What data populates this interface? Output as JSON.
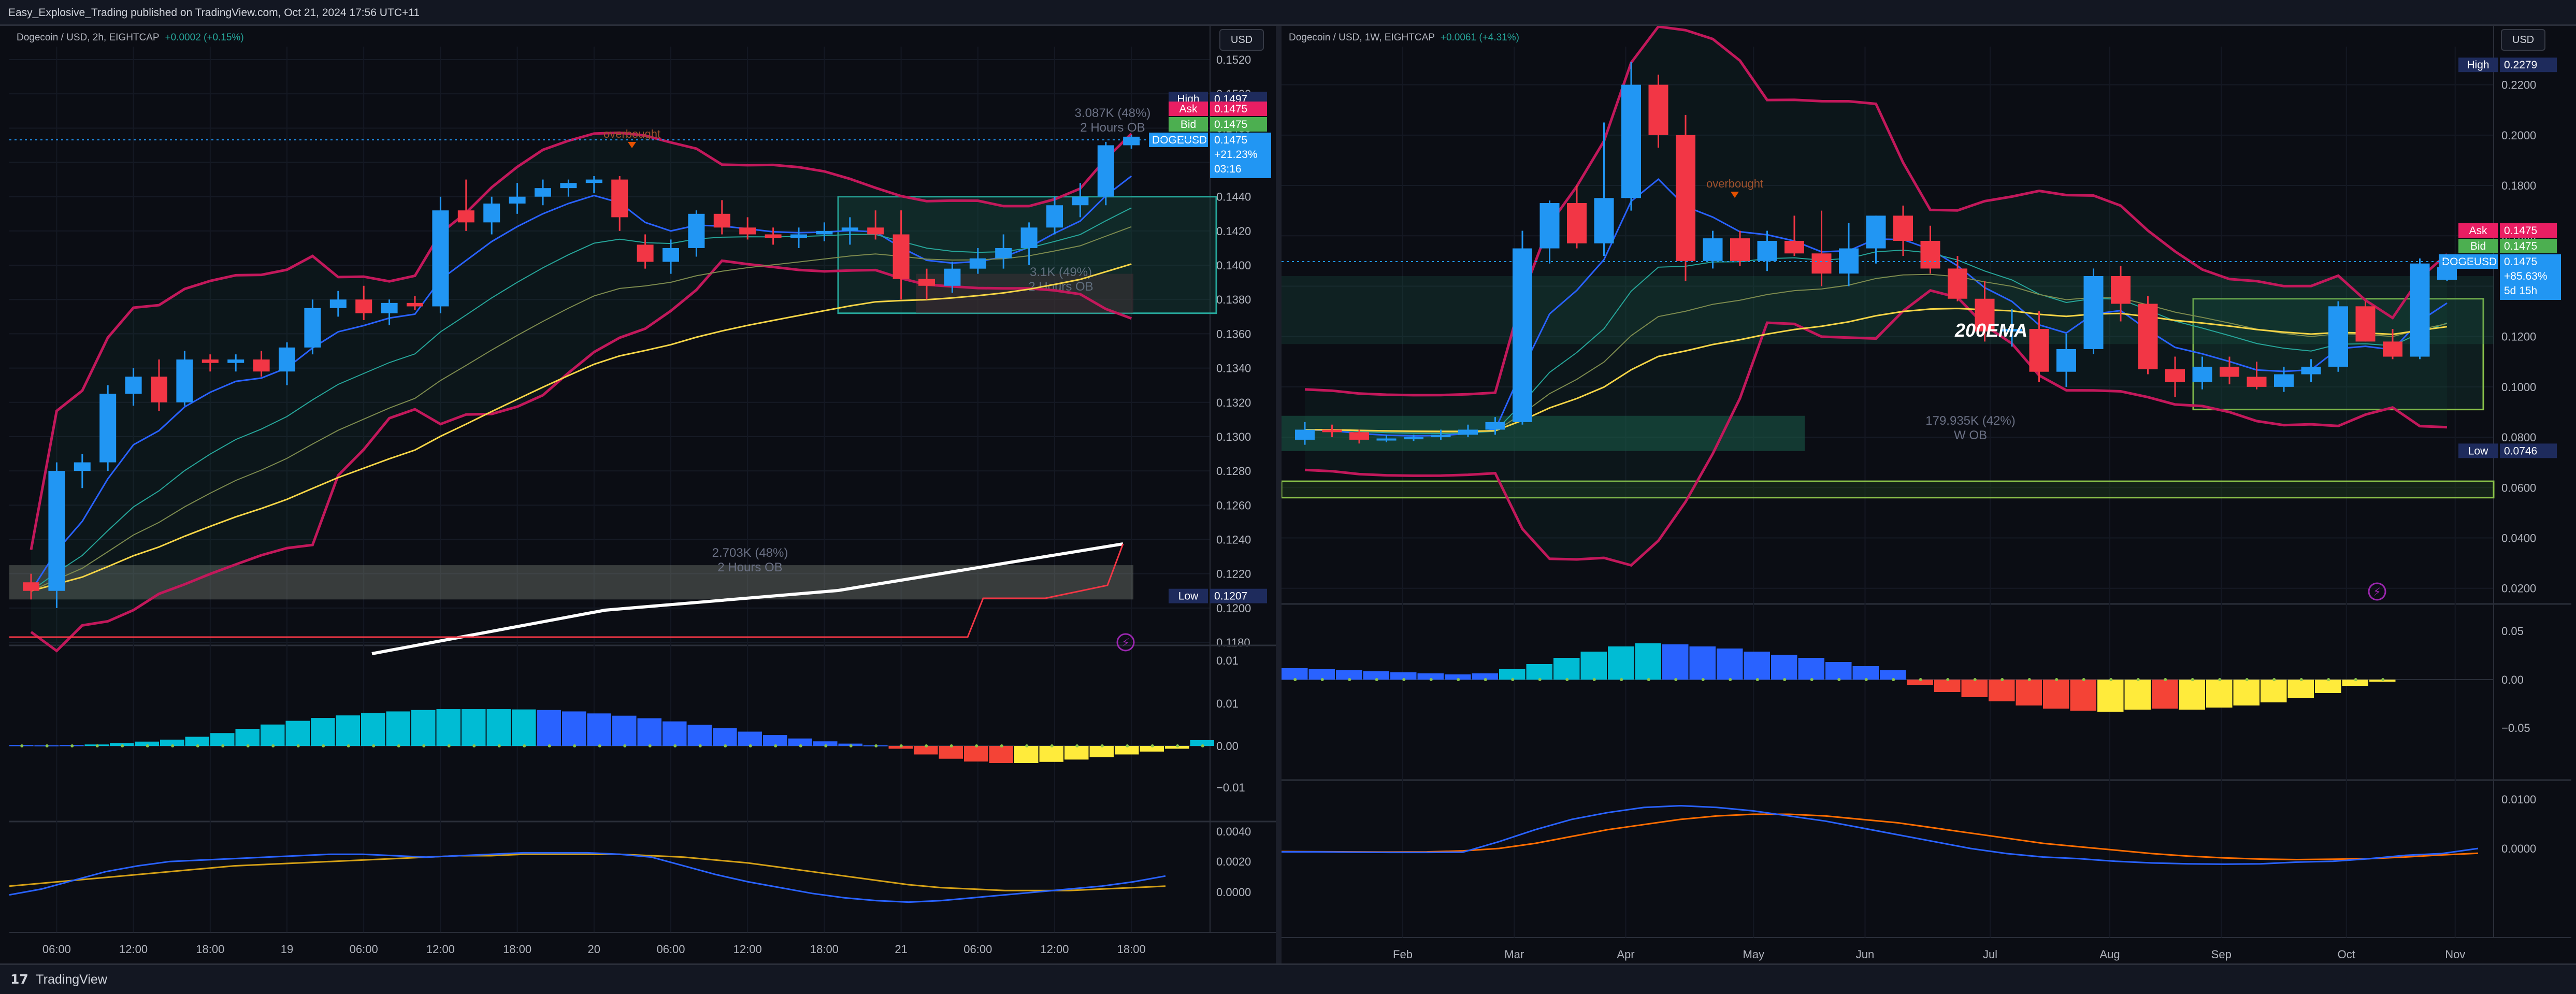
{
  "header": {
    "text": "Easy_Explosive_Trading published on TradingView.com, Oct 21, 2024 17:56 UTC+11"
  },
  "footer": {
    "logo": "17",
    "brand": "TradingView"
  },
  "colors": {
    "bull": "#2196f3",
    "bear": "#f23645",
    "bb": "#c2185b",
    "ema_fast": "#2962ff",
    "ema_slow": "#f5d547",
    "tag_high": "#1e2b5c",
    "tag_ask": "#e91e63",
    "tag_bid": "#4caf50",
    "tag_last": "#2196f3",
    "hist_cyan": "#00bcd4",
    "hist_blue": "#2962ff",
    "hist_red": "#f44336",
    "hist_yellow": "#ffeb3b",
    "macd": "#2962ff",
    "signal_l": "#d4a017",
    "signal_r": "#ff6d00"
  },
  "chart_data": [
    {
      "type": "candlestick",
      "title": "Dogecoin / USD, 2h, EIGHTCAP",
      "change": "+0.0002 (+0.15%)",
      "currency_button": "USD",
      "ylim": [
        0.118,
        0.152
      ],
      "y_ticks": [
        "0.1520",
        "0.1500",
        "0.1480",
        "0.1460",
        "0.1440",
        "0.1420",
        "0.1400",
        "0.1380",
        "0.1360",
        "0.1340",
        "0.1320",
        "0.1300",
        "0.1280",
        "0.1260",
        "0.1240",
        "0.1220",
        "0.1200",
        "0.1180"
      ],
      "x_labels": [
        "06:00",
        "12:00",
        "18:00",
        "19",
        "06:00",
        "12:00",
        "18:00",
        "20",
        "06:00",
        "12:00",
        "18:00",
        "21",
        "06:00",
        "12:00",
        "18:00"
      ],
      "x_label_pos": [
        1,
        4,
        7,
        10,
        13,
        16,
        19,
        22,
        25,
        28,
        31,
        34,
        37,
        40,
        43
      ],
      "candles": [
        [
          0.1215,
          0.122,
          0.1205,
          0.121
        ],
        [
          0.121,
          0.1285,
          0.12,
          0.128
        ],
        [
          0.128,
          0.129,
          0.127,
          0.1285
        ],
        [
          0.1285,
          0.133,
          0.128,
          0.1325
        ],
        [
          0.1325,
          0.134,
          0.1318,
          0.1335
        ],
        [
          0.1335,
          0.1345,
          0.1315,
          0.132
        ],
        [
          0.132,
          0.135,
          0.1318,
          0.1345
        ],
        [
          0.1345,
          0.1348,
          0.1338,
          0.1343
        ],
        [
          0.1343,
          0.1348,
          0.1338,
          0.1345
        ],
        [
          0.1345,
          0.135,
          0.1335,
          0.1338
        ],
        [
          0.1338,
          0.1355,
          0.133,
          0.1352
        ],
        [
          0.1352,
          0.138,
          0.1348,
          0.1375
        ],
        [
          0.1375,
          0.1385,
          0.137,
          0.138
        ],
        [
          0.138,
          0.1388,
          0.1368,
          0.1372
        ],
        [
          0.1372,
          0.138,
          0.1365,
          0.1378
        ],
        [
          0.1378,
          0.1382,
          0.1374,
          0.1376
        ],
        [
          0.1376,
          0.144,
          0.1372,
          0.1432
        ],
        [
          0.1432,
          0.145,
          0.142,
          0.1425
        ],
        [
          0.1425,
          0.144,
          0.1418,
          0.1436
        ],
        [
          0.1436,
          0.1448,
          0.143,
          0.144
        ],
        [
          0.144,
          0.145,
          0.1435,
          0.1445
        ],
        [
          0.1445,
          0.145,
          0.144,
          0.1448
        ],
        [
          0.1448,
          0.1452,
          0.1442,
          0.145
        ],
        [
          0.145,
          0.1452,
          0.142,
          0.1428
        ],
        [
          0.1412,
          0.1418,
          0.1398,
          0.1402
        ],
        [
          0.1402,
          0.1415,
          0.1395,
          0.141
        ],
        [
          0.141,
          0.1432,
          0.1405,
          0.143
        ],
        [
          0.143,
          0.1438,
          0.1418,
          0.1422
        ],
        [
          0.1422,
          0.1428,
          0.1415,
          0.1418
        ],
        [
          0.1418,
          0.1422,
          0.1412,
          0.1416
        ],
        [
          0.1416,
          0.1422,
          0.141,
          0.1418
        ],
        [
          0.1418,
          0.1425,
          0.1414,
          0.142
        ],
        [
          0.142,
          0.1428,
          0.1412,
          0.1422
        ],
        [
          0.1422,
          0.1432,
          0.1415,
          0.1418
        ],
        [
          0.1418,
          0.1432,
          0.138,
          0.1392
        ],
        [
          0.1392,
          0.1398,
          0.138,
          0.1388
        ],
        [
          0.1388,
          0.1402,
          0.1384,
          0.1398
        ],
        [
          0.1398,
          0.141,
          0.1395,
          0.1404
        ],
        [
          0.1404,
          0.1418,
          0.1398,
          0.141
        ],
        [
          0.141,
          0.1425,
          0.14,
          0.1422
        ],
        [
          0.1422,
          0.144,
          0.1418,
          0.1435
        ],
        [
          0.1435,
          0.1448,
          0.1428,
          0.144
        ],
        [
          0.144,
          0.1472,
          0.1435,
          0.147
        ],
        [
          0.147,
          0.1476,
          0.1468,
          0.1475
        ]
      ],
      "zones": [
        {
          "label": "3.087K (48%)",
          "sublabel": "2 Hours OB"
        },
        {
          "label": "3.1K (49%)",
          "sublabel": "2 Hours OB"
        },
        {
          "label": "2.703K (48%)",
          "sublabel": "2 Hours OB"
        }
      ],
      "annotation": "overbought",
      "tags": {
        "high": {
          "label": "High",
          "value": "0.1497"
        },
        "ask": {
          "label": "Ask",
          "value": "0.1475"
        },
        "bid": {
          "label": "Bid",
          "value": "0.1475"
        },
        "last": {
          "symbol": "DOGEUSD",
          "value": "0.1475",
          "change": "+21.23%",
          "countdown": "03:16"
        },
        "low": {
          "label": "Low",
          "value": "0.1207"
        }
      },
      "histogram": {
        "y_ticks": [
          "0.01",
          "0.01",
          "0.00",
          "−0.01"
        ],
        "values": [
          0.0003,
          0.0002,
          0.0003,
          0.0005,
          0.001,
          0.0015,
          0.0022,
          0.0032,
          0.0045,
          0.006,
          0.0075,
          0.0088,
          0.0098,
          0.0107,
          0.0115,
          0.0121,
          0.0126,
          0.0129,
          0.0129,
          0.0129,
          0.0128,
          0.0126,
          0.0121,
          0.0114,
          0.0106,
          0.0097,
          0.0086,
          0.0074,
          0.0062,
          0.005,
          0.0038,
          0.0026,
          0.0016,
          0.0008,
          0.0002,
          -0.001,
          -0.003,
          -0.0045,
          -0.0055,
          -0.006,
          -0.006,
          -0.0056,
          -0.0048,
          -0.004,
          -0.003,
          -0.002,
          -0.001,
          0.002
        ],
        "colors": [
          "b",
          "b",
          "b",
          "c",
          "c",
          "c",
          "c",
          "c",
          "c",
          "c",
          "c",
          "c",
          "c",
          "c",
          "c",
          "c",
          "c",
          "c",
          "c",
          "c",
          "c",
          "b",
          "b",
          "b",
          "b",
          "b",
          "b",
          "b",
          "b",
          "b",
          "b",
          "b",
          "b",
          "b",
          "b",
          "r",
          "r",
          "r",
          "r",
          "r",
          "y",
          "y",
          "y",
          "y",
          "y",
          "y",
          "y",
          "c"
        ]
      },
      "oscillator": {
        "y_ticks": [
          "0.0040",
          "0.0020",
          "0.0000"
        ],
        "macd": [
          -0.0002,
          0.0002,
          0.0008,
          0.0014,
          0.0018,
          0.0021,
          0.0022,
          0.0023,
          0.0024,
          0.0025,
          0.0026,
          0.0026,
          0.0025,
          0.0024,
          0.0025,
          0.0026,
          0.0027,
          0.0027,
          0.0027,
          0.0026,
          0.0024,
          0.0018,
          0.0012,
          0.0007,
          0.0003,
          -0.0001,
          -0.0004,
          -0.0006,
          -0.0007,
          -0.0006,
          -0.0004,
          -0.0002,
          0.0,
          0.0002,
          0.0004,
          0.0007,
          0.0011
        ],
        "signal": [
          0.0004,
          0.0006,
          0.0008,
          0.001,
          0.0012,
          0.0014,
          0.0016,
          0.0018,
          0.0019,
          0.002,
          0.0021,
          0.0022,
          0.0023,
          0.0024,
          0.0025,
          0.0025,
          0.0026,
          0.0026,
          0.0026,
          0.0026,
          0.0025,
          0.0024,
          0.0022,
          0.002,
          0.0017,
          0.0014,
          0.0011,
          0.0008,
          0.0005,
          0.0003,
          0.0002,
          0.0001,
          0.0001,
          0.0001,
          0.0002,
          0.0003,
          0.0004
        ]
      }
    },
    {
      "type": "candlestick",
      "title": "Dogecoin / USD, 1W, EIGHTCAP",
      "change": "+0.0061 (+4.31%)",
      "currency_button": "USD",
      "ylim": [
        0.015,
        0.23
      ],
      "y_ticks": [
        "0.2200",
        "0.2000",
        "0.1800",
        "0.1600",
        "0.1400",
        "0.1200",
        "0.1000",
        "0.0800",
        "0.0600",
        "0.0400",
        "0.0200"
      ],
      "x_labels": [
        "Feb",
        "Mar",
        "Apr",
        "May",
        "Jun",
        "Jul",
        "Aug",
        "Sep",
        "Oct",
        "Nov"
      ],
      "x_label_pos": [
        3.6,
        7.7,
        11.8,
        16.5,
        20.6,
        25.2,
        29.6,
        33.7,
        38.3,
        42.3
      ],
      "candles": [
        [
          0.079,
          0.086,
          0.077,
          0.083
        ],
        [
          0.083,
          0.085,
          0.08,
          0.082
        ],
        [
          0.082,
          0.083,
          0.0775,
          0.079
        ],
        [
          0.079,
          0.081,
          0.078,
          0.0795
        ],
        [
          0.0795,
          0.081,
          0.0785,
          0.08
        ],
        [
          0.08,
          0.083,
          0.079,
          0.081
        ],
        [
          0.081,
          0.085,
          0.08,
          0.083
        ],
        [
          0.083,
          0.088,
          0.081,
          0.086
        ],
        [
          0.086,
          0.162,
          0.085,
          0.155
        ],
        [
          0.155,
          0.174,
          0.149,
          0.173
        ],
        [
          0.173,
          0.18,
          0.155,
          0.157
        ],
        [
          0.157,
          0.205,
          0.152,
          0.175
        ],
        [
          0.175,
          0.229,
          0.17,
          0.22
        ],
        [
          0.22,
          0.224,
          0.195,
          0.2
        ],
        [
          0.2,
          0.208,
          0.142,
          0.15
        ],
        [
          0.15,
          0.162,
          0.147,
          0.159
        ],
        [
          0.159,
          0.162,
          0.148,
          0.15
        ],
        [
          0.15,
          0.162,
          0.146,
          0.158
        ],
        [
          0.158,
          0.168,
          0.152,
          0.153
        ],
        [
          0.153,
          0.17,
          0.14,
          0.145
        ],
        [
          0.145,
          0.165,
          0.14,
          0.155
        ],
        [
          0.155,
          0.168,
          0.149,
          0.168
        ],
        [
          0.168,
          0.172,
          0.152,
          0.158
        ],
        [
          0.158,
          0.164,
          0.145,
          0.147
        ],
        [
          0.147,
          0.152,
          0.134,
          0.135
        ],
        [
          0.135,
          0.142,
          0.118,
          0.122
        ],
        [
          0.122,
          0.131,
          0.116,
          0.123
        ],
        [
          0.123,
          0.13,
          0.102,
          0.106
        ],
        [
          0.106,
          0.121,
          0.1,
          0.115
        ],
        [
          0.115,
          0.147,
          0.113,
          0.144
        ],
        [
          0.144,
          0.148,
          0.126,
          0.133
        ],
        [
          0.133,
          0.136,
          0.105,
          0.107
        ],
        [
          0.107,
          0.112,
          0.096,
          0.102
        ],
        [
          0.102,
          0.112,
          0.099,
          0.108
        ],
        [
          0.108,
          0.112,
          0.101,
          0.104
        ],
        [
          0.104,
          0.11,
          0.099,
          0.1
        ],
        [
          0.1,
          0.108,
          0.098,
          0.105
        ],
        [
          0.105,
          0.111,
          0.102,
          0.108
        ],
        [
          0.108,
          0.134,
          0.106,
          0.132
        ],
        [
          0.132,
          0.134,
          0.118,
          0.118
        ],
        [
          0.118,
          0.123,
          0.111,
          0.112
        ],
        [
          0.112,
          0.151,
          0.111,
          0.149
        ],
        [
          0.1425,
          0.1495,
          0.142,
          0.1475
        ]
      ],
      "zones": [
        {
          "label": "179.935K (42%)",
          "sublabel": "W OB"
        }
      ],
      "annotation": "overbought",
      "label_200ema": "200EMA",
      "tags": {
        "high": {
          "label": "High",
          "value": "0.2279"
        },
        "ask": {
          "label": "Ask",
          "value": "0.1475"
        },
        "bid": {
          "label": "Bid",
          "value": "0.1475"
        },
        "last": {
          "symbol": "DOGEUSD",
          "value": "0.1475",
          "change": "+85.63%",
          "countdown": "5d 15h"
        },
        "low": {
          "label": "Low",
          "value": "0.0746"
        }
      },
      "histogram": {
        "y_ticks": [
          "0.05",
          "0.00",
          "−0.05"
        ],
        "values": [
          0.011,
          0.01,
          0.009,
          0.008,
          0.007,
          0.006,
          0.005,
          0.006,
          0.01,
          0.015,
          0.021,
          0.027,
          0.032,
          0.035,
          0.034,
          0.032,
          0.03,
          0.027,
          0.024,
          0.021,
          0.017,
          0.013,
          0.009,
          -0.005,
          -0.012,
          -0.017,
          -0.021,
          -0.025,
          -0.028,
          -0.03,
          -0.031,
          -0.029,
          -0.028,
          -0.029,
          -0.027,
          -0.025,
          -0.022,
          -0.018,
          -0.013,
          -0.006,
          -0.002
        ],
        "colors": [
          "b",
          "b",
          "b",
          "b",
          "b",
          "b",
          "b",
          "b",
          "c",
          "c",
          "c",
          "c",
          "c",
          "c",
          "b",
          "b",
          "b",
          "b",
          "b",
          "b",
          "b",
          "b",
          "b",
          "r",
          "r",
          "r",
          "r",
          "r",
          "r",
          "r",
          "y",
          "y",
          "r",
          "y",
          "y",
          "y",
          "y",
          "y",
          "y",
          "y",
          "y"
        ]
      },
      "oscillator": {
        "y_ticks": [
          "0.0100",
          "0.0000"
        ],
        "macd": [
          -0.002,
          -0.002,
          -0.0022,
          -0.0023,
          -0.0023,
          -0.0022,
          0.004,
          0.011,
          0.017,
          0.021,
          0.024,
          0.025,
          0.024,
          0.022,
          0.019,
          0.016,
          0.012,
          0.008,
          0.004,
          0.0,
          -0.003,
          -0.005,
          -0.006,
          -0.0075,
          -0.0085,
          -0.009,
          -0.0092,
          -0.009,
          -0.008,
          -0.0075,
          -0.006,
          -0.004,
          -0.003,
          0.0
        ],
        "signal": [
          -0.0018,
          -0.0019,
          -0.002,
          -0.0021,
          -0.002,
          -0.0014,
          0.0,
          0.003,
          0.007,
          0.011,
          0.014,
          0.017,
          0.019,
          0.02,
          0.02,
          0.019,
          0.017,
          0.015,
          0.012,
          0.009,
          0.006,
          0.003,
          0.001,
          -0.001,
          -0.003,
          -0.0045,
          -0.0055,
          -0.0062,
          -0.0065,
          -0.0063,
          -0.006,
          -0.005,
          -0.0038,
          -0.0028
        ]
      }
    }
  ]
}
